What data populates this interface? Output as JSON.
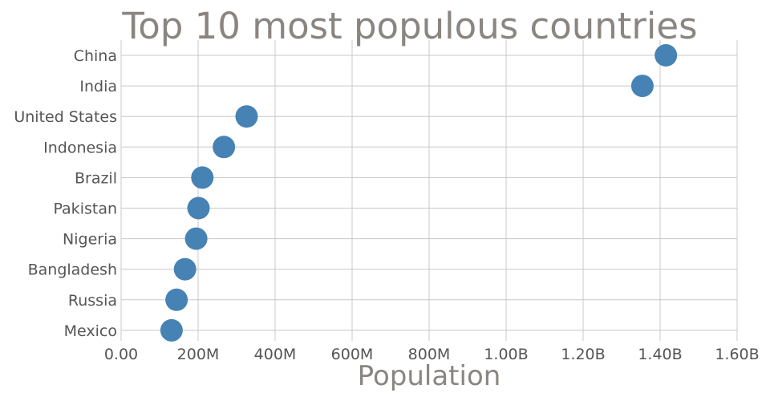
{
  "chart_data": {
    "type": "scatter",
    "title": "Top 10 most populous countries",
    "xlabel": "Population",
    "ylabel": "",
    "categories": [
      "China",
      "India",
      "United States",
      "Indonesia",
      "Brazil",
      "Pakistan",
      "Nigeria",
      "Bangladesh",
      "Russia",
      "Mexico"
    ],
    "values": [
      1415000000,
      1354000000,
      326000000,
      267000000,
      211000000,
      201000000,
      195000000,
      166000000,
      144000000,
      131000000
    ],
    "xlim": [
      0,
      1600000000
    ],
    "xticks": [
      0,
      200000000,
      400000000,
      600000000,
      800000000,
      1000000000,
      1200000000,
      1400000000,
      1600000000
    ],
    "xtick_labels": [
      "0.00",
      "200M",
      "400M",
      "600M",
      "800M",
      "1.00B",
      "1.20B",
      "1.40B",
      "1.60B"
    ],
    "grid": true,
    "color": "#4682b4"
  }
}
